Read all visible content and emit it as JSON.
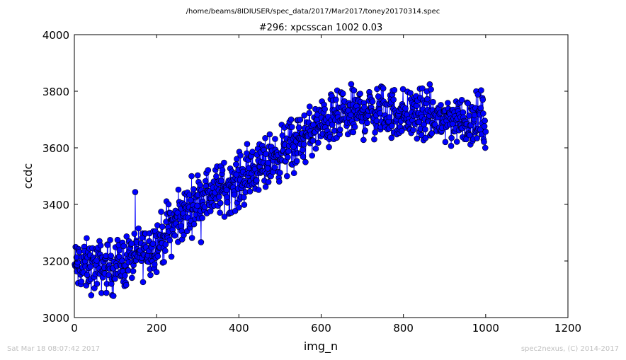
{
  "suptitle": "/home/beams/8IDIUSER/spec_data/2017/Mar2017/toney20170314.spec",
  "footer": {
    "timestamp": "Sat Mar 18 08:07:42 2017",
    "credit": "spec2nexus, (C) 2014-2017"
  },
  "chart_data": {
    "type": "line",
    "title": "#296: xpcsscan 1002 0.03",
    "xlabel": "img_n",
    "ylabel": "ccdc",
    "xlim": [
      0,
      1200
    ],
    "ylim": [
      3000,
      4000
    ],
    "xticks": [
      0,
      200,
      400,
      600,
      800,
      1000,
      1200
    ],
    "yticks": [
      3000,
      3200,
      3400,
      3600,
      3800,
      4000
    ],
    "grid": false,
    "marker": "circle",
    "series_color": "#0000ff",
    "marker_edge": "#000000",
    "trend_x": [
      0,
      100,
      200,
      300,
      400,
      500,
      600,
      700,
      800,
      900,
      1000
    ],
    "trend_y": [
      3180,
      3180,
      3260,
      3420,
      3480,
      3580,
      3680,
      3730,
      3720,
      3700,
      3700
    ],
    "n_points": 1000,
    "noise_amplitude": 100
  }
}
